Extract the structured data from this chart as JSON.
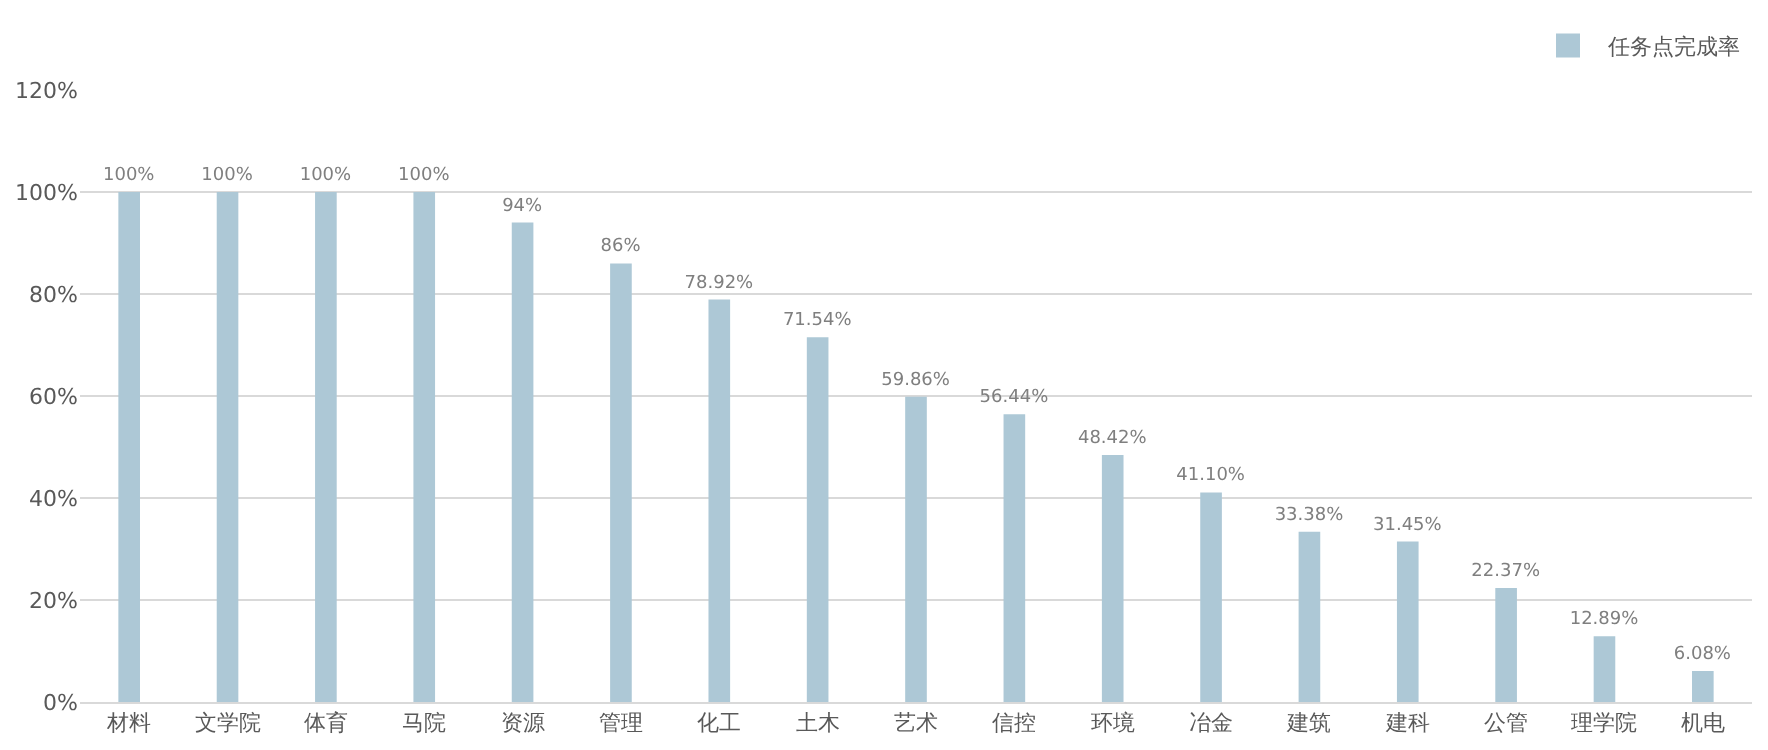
{
  "chart_data": {
    "type": "bar",
    "categories": [
      "材料",
      "文学院",
      "体育",
      "马院",
      "资源",
      "管理",
      "化工",
      "土木",
      "艺术",
      "信控",
      "环境",
      "冶金",
      "建筑",
      "建科",
      "公管",
      "理学院",
      "机电"
    ],
    "series": [
      {
        "name": "任务点完成率",
        "color": "#adc8d6",
        "values": [
          100,
          100,
          100,
          100,
          94,
          86,
          78.92,
          71.54,
          59.86,
          56.44,
          48.42,
          41.1,
          33.38,
          31.45,
          22.37,
          12.89,
          6.08
        ],
        "value_labels": [
          "100%",
          "100%",
          "100%",
          "100%",
          "94%",
          "86%",
          "78.92%",
          "71.54%",
          "59.86%",
          "56.44%",
          "48.42%",
          "41.10%",
          "33.38%",
          "31.45%",
          "22.37%",
          "12.89%",
          "6.08%"
        ]
      }
    ],
    "ylim": [
      0,
      120
    ],
    "yticks": [
      {
        "value": 0,
        "label": "0%"
      },
      {
        "value": 20,
        "label": "20%"
      },
      {
        "value": 40,
        "label": "40%"
      },
      {
        "value": 60,
        "label": "60%"
      },
      {
        "value": 80,
        "label": "80%"
      },
      {
        "value": 100,
        "label": "100%"
      },
      {
        "value": 120,
        "label": "120%"
      }
    ],
    "grid": "y",
    "legend": "top right"
  }
}
